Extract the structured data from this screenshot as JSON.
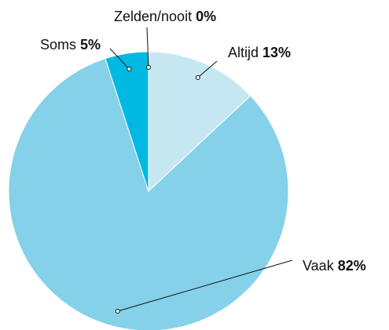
{
  "chart_data": {
    "type": "pie",
    "categories": [
      "Altijd",
      "Vaak",
      "Soms",
      "Zelden/nooit"
    ],
    "values": [
      13,
      82,
      5,
      0
    ],
    "value_labels": [
      "13%",
      "82%",
      "5%",
      "0%"
    ],
    "colors": [
      "#c6e7f2",
      "#84d1e9",
      "#00b9e2",
      "#00b9e2"
    ]
  }
}
